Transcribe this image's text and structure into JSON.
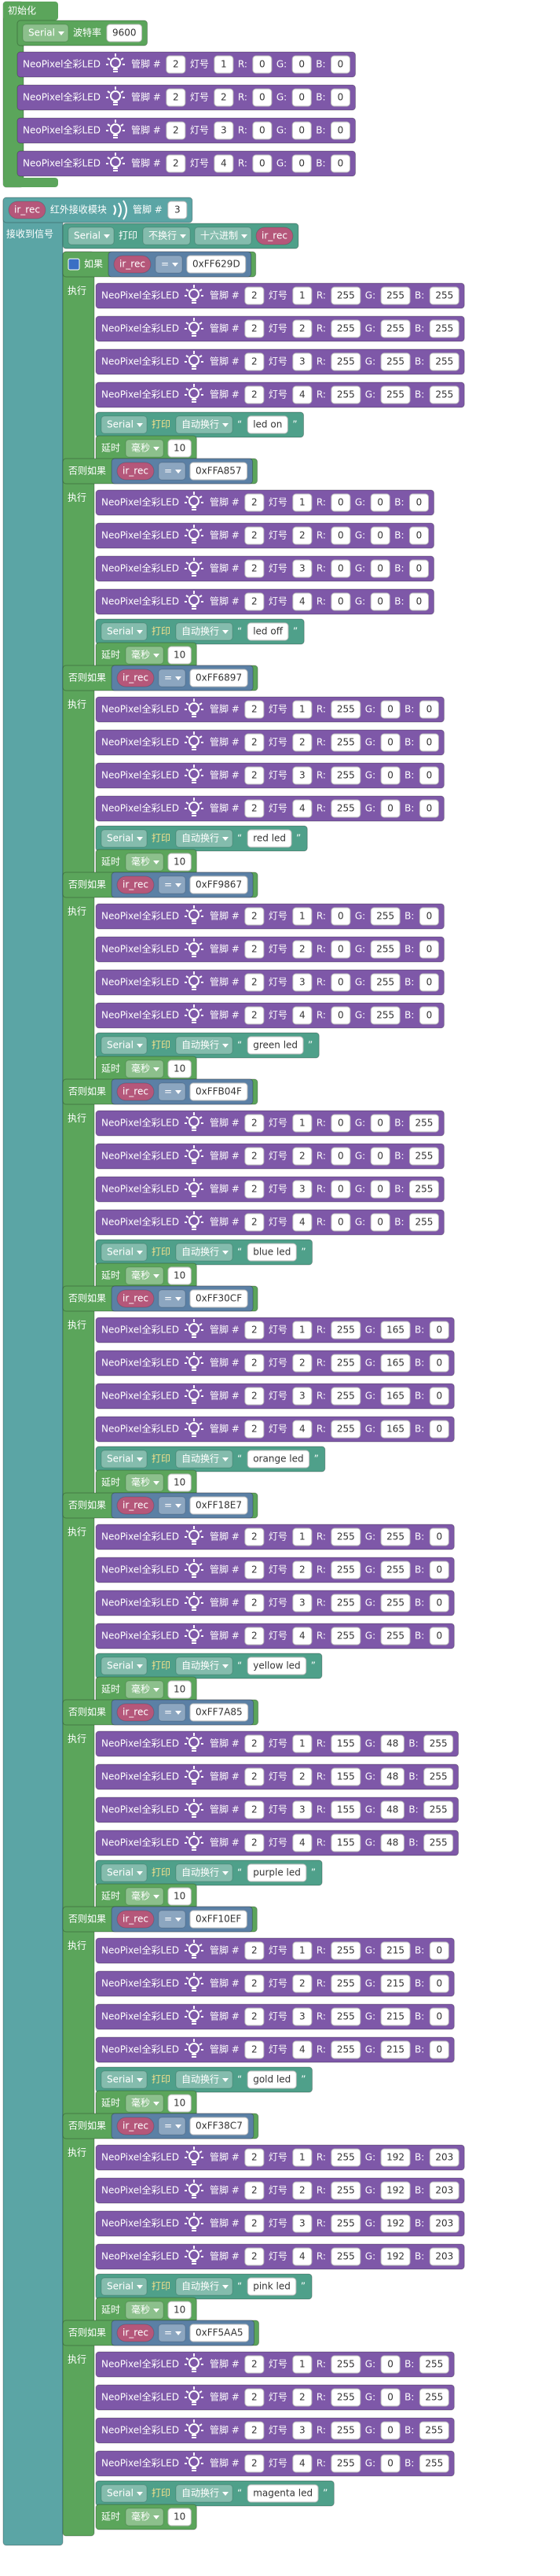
{
  "labels": {
    "neopixel": "NeoPixel全彩LED",
    "pin": "管脚 #",
    "index": "灯号",
    "r": "R:",
    "g": "G:",
    "b": "B:",
    "do": "执行",
    "eq": "=",
    "serial": "Serial",
    "print": "打印",
    "newline": "自动换行",
    "delay": "延时",
    "ms": "毫秒",
    "open_quote": "“",
    "close_quote": "”"
  },
  "setup": {
    "title": "初始化",
    "baud_label": "波特率",
    "baud": 9600,
    "leds": [
      {
        "pin": 2,
        "index": 1,
        "r": 0,
        "g": 0,
        "b": 0
      },
      {
        "pin": 2,
        "index": 2,
        "r": 0,
        "g": 0,
        "b": 0
      },
      {
        "pin": 2,
        "index": 3,
        "r": 0,
        "g": 0,
        "b": 0
      },
      {
        "pin": 2,
        "index": 4,
        "r": 0,
        "g": 0,
        "b": 0
      }
    ]
  },
  "ir": {
    "var": "ir_rec",
    "label": "红外接收模块",
    "pin": 3,
    "receive": "接收到信号",
    "mode": "不换行",
    "format": "十六进制"
  },
  "branches": [
    {
      "keyword": "如果",
      "code": "0xFF629D",
      "leds": [
        {
          "pin": 2,
          "index": 1,
          "r": 255,
          "g": 255,
          "b": 255
        },
        {
          "pin": 2,
          "index": 2,
          "r": 255,
          "g": 255,
          "b": 255
        },
        {
          "pin": 2,
          "index": 3,
          "r": 255,
          "g": 255,
          "b": 255
        },
        {
          "pin": 2,
          "index": 4,
          "r": 255,
          "g": 255,
          "b": 255
        }
      ],
      "message": "led on",
      "delay": 10
    },
    {
      "keyword": "否则如果",
      "code": "0xFFA857",
      "leds": [
        {
          "pin": 2,
          "index": 1,
          "r": 0,
          "g": 0,
          "b": 0
        },
        {
          "pin": 2,
          "index": 2,
          "r": 0,
          "g": 0,
          "b": 0
        },
        {
          "pin": 2,
          "index": 3,
          "r": 0,
          "g": 0,
          "b": 0
        },
        {
          "pin": 2,
          "index": 4,
          "r": 0,
          "g": 0,
          "b": 0
        }
      ],
      "message": "led off",
      "delay": 10
    },
    {
      "keyword": "否则如果",
      "code": "0xFF6897",
      "leds": [
        {
          "pin": 2,
          "index": 1,
          "r": 255,
          "g": 0,
          "b": 0
        },
        {
          "pin": 2,
          "index": 2,
          "r": 255,
          "g": 0,
          "b": 0
        },
        {
          "pin": 2,
          "index": 3,
          "r": 255,
          "g": 0,
          "b": 0
        },
        {
          "pin": 2,
          "index": 4,
          "r": 255,
          "g": 0,
          "b": 0
        }
      ],
      "message": "red led",
      "delay": 10
    },
    {
      "keyword": "否则如果",
      "code": "0xFF9867",
      "leds": [
        {
          "pin": 2,
          "index": 1,
          "r": 0,
          "g": 255,
          "b": 0
        },
        {
          "pin": 2,
          "index": 2,
          "r": 0,
          "g": 255,
          "b": 0
        },
        {
          "pin": 2,
          "index": 3,
          "r": 0,
          "g": 255,
          "b": 0
        },
        {
          "pin": 2,
          "index": 4,
          "r": 0,
          "g": 255,
          "b": 0
        }
      ],
      "message": "green led",
      "delay": 10
    },
    {
      "keyword": "否则如果",
      "code": "0xFFB04F",
      "leds": [
        {
          "pin": 2,
          "index": 1,
          "r": 0,
          "g": 0,
          "b": 255
        },
        {
          "pin": 2,
          "index": 2,
          "r": 0,
          "g": 0,
          "b": 255
        },
        {
          "pin": 2,
          "index": 3,
          "r": 0,
          "g": 0,
          "b": 255
        },
        {
          "pin": 2,
          "index": 4,
          "r": 0,
          "g": 0,
          "b": 255
        }
      ],
      "message": "blue led",
      "delay": 10
    },
    {
      "keyword": "否则如果",
      "code": "0xFF30CF",
      "leds": [
        {
          "pin": 2,
          "index": 1,
          "r": 255,
          "g": 165,
          "b": 0
        },
        {
          "pin": 2,
          "index": 2,
          "r": 255,
          "g": 165,
          "b": 0
        },
        {
          "pin": 2,
          "index": 3,
          "r": 255,
          "g": 165,
          "b": 0
        },
        {
          "pin": 2,
          "index": 4,
          "r": 255,
          "g": 165,
          "b": 0
        }
      ],
      "message": "orange led",
      "delay": 10
    },
    {
      "keyword": "否则如果",
      "code": "0xFF18E7",
      "leds": [
        {
          "pin": 2,
          "index": 1,
          "r": 255,
          "g": 255,
          "b": 0
        },
        {
          "pin": 2,
          "index": 2,
          "r": 255,
          "g": 255,
          "b": 0
        },
        {
          "pin": 2,
          "index": 3,
          "r": 255,
          "g": 255,
          "b": 0
        },
        {
          "pin": 2,
          "index": 4,
          "r": 255,
          "g": 255,
          "b": 0
        }
      ],
      "message": "yellow led",
      "delay": 10
    },
    {
      "keyword": "否则如果",
      "code": "0xFF7A85",
      "leds": [
        {
          "pin": 2,
          "index": 1,
          "r": 155,
          "g": 48,
          "b": 255
        },
        {
          "pin": 2,
          "index": 2,
          "r": 155,
          "g": 48,
          "b": 255
        },
        {
          "pin": 2,
          "index": 3,
          "r": 155,
          "g": 48,
          "b": 255
        },
        {
          "pin": 2,
          "index": 4,
          "r": 155,
          "g": 48,
          "b": 255
        }
      ],
      "message": "purple led",
      "delay": 10
    },
    {
      "keyword": "否则如果",
      "code": "0xFF10EF",
      "leds": [
        {
          "pin": 2,
          "index": 1,
          "r": 255,
          "g": 215,
          "b": 0
        },
        {
          "pin": 2,
          "index": 2,
          "r": 255,
          "g": 215,
          "b": 0
        },
        {
          "pin": 2,
          "index": 3,
          "r": 255,
          "g": 215,
          "b": 0
        },
        {
          "pin": 2,
          "index": 4,
          "r": 255,
          "g": 215,
          "b": 0
        }
      ],
      "message": "gold led",
      "delay": 10
    },
    {
      "keyword": "否则如果",
      "code": "0xFF38C7",
      "leds": [
        {
          "pin": 2,
          "index": 1,
          "r": 255,
          "g": 192,
          "b": 203
        },
        {
          "pin": 2,
          "index": 2,
          "r": 255,
          "g": 192,
          "b": 203
        },
        {
          "pin": 2,
          "index": 3,
          "r": 255,
          "g": 192,
          "b": 203
        },
        {
          "pin": 2,
          "index": 4,
          "r": 255,
          "g": 192,
          "b": 203
        }
      ],
      "message": "pink led",
      "delay": 10
    },
    {
      "keyword": "否则如果",
      "code": "0xFF5AA5",
      "leds": [
        {
          "pin": 2,
          "index": 1,
          "r": 255,
          "g": 0,
          "b": 255
        },
        {
          "pin": 2,
          "index": 2,
          "r": 255,
          "g": 0,
          "b": 255
        },
        {
          "pin": 2,
          "index": 3,
          "r": 255,
          "g": 0,
          "b": 255
        },
        {
          "pin": 2,
          "index": 4,
          "r": 255,
          "g": 0,
          "b": 255
        }
      ],
      "message": "magenta led",
      "delay": 10
    }
  ]
}
